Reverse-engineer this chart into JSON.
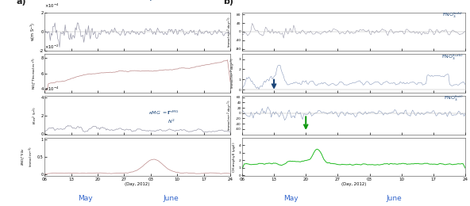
{
  "x_tick_labels": [
    "06",
    "13",
    "20",
    "27",
    "03",
    "10",
    "17",
    "24"
  ],
  "x_label": "(Day, 2012)",
  "may_label": "May",
  "june_label": "June",
  "bg_color": "#ffffff",
  "panel_bg": "#ffffff",
  "line_color_w": "#9999aa",
  "line_color_no3t": "#bb8888",
  "line_color_kappa": "#9999aa",
  "line_color_dno3": "#bb8888",
  "line_color_adv": "#9999aa",
  "line_color_turb": "#8899bb",
  "line_color_tot": "#8899bb",
  "line_color_chlor": "#22bb22",
  "arrow_blue_color": "#1a4477",
  "arrow_green_color": "#119911",
  "title_color": "#1a4477",
  "label_color": "#1a4477",
  "month_color": "#3366cc",
  "n_points": 200
}
